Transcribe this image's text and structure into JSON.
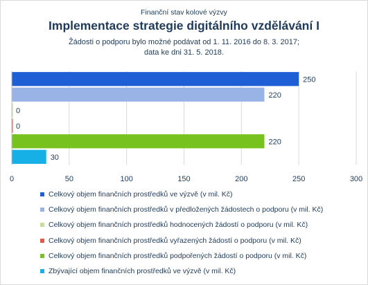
{
  "header": {
    "supertitle": "Finanční stav kolové výzvy",
    "title": "Implementace strategie digitálního vzdělávání I",
    "subtitle_line1": "Žádosti o podporu bylo možné  podávat od 1. 11. 2016 do 8. 3. 2017;",
    "subtitle_line2": "data ke dni 31. 5. 2018."
  },
  "chart_data": {
    "type": "bar",
    "orientation": "horizontal",
    "xlim": [
      0,
      300
    ],
    "xticks": [
      "0",
      "50",
      "100",
      "150",
      "200",
      "250",
      "300"
    ],
    "grid": true,
    "legend_position": "bottom",
    "series": [
      {
        "name": "Celkový objem finančních prostředků ve výzvě (v mil. Kč)",
        "value": 250,
        "label": "250",
        "color": "#1f5fd6"
      },
      {
        "name": "Celkový objem finančních prostředků v předložených žádostech o podporu (v mil. Kč)",
        "value": 220,
        "label": "220",
        "color": "#9ab3e6"
      },
      {
        "name": "Celkový objem finančních prostředků hodnocených žádostí o podporu (v mil. Kč)",
        "value": 0,
        "label": "0",
        "color": "#c3df9b"
      },
      {
        "name": "Celkový objem finančních prostředků vyřazených žádostí o podporu (v mil. Kč)",
        "value": 0,
        "label": "0",
        "color": "#e05a4a"
      },
      {
        "name": "Celkový objem finančních prostředků podpořených žádostí o podporu (v mil. Kč)",
        "value": 220,
        "label": "220",
        "color": "#77c21f"
      },
      {
        "name": "Zbývající objem finančních prostředků ve výzvě (v mil. Kč)",
        "value": 30,
        "label": "30",
        "color": "#17b0e6"
      }
    ]
  }
}
